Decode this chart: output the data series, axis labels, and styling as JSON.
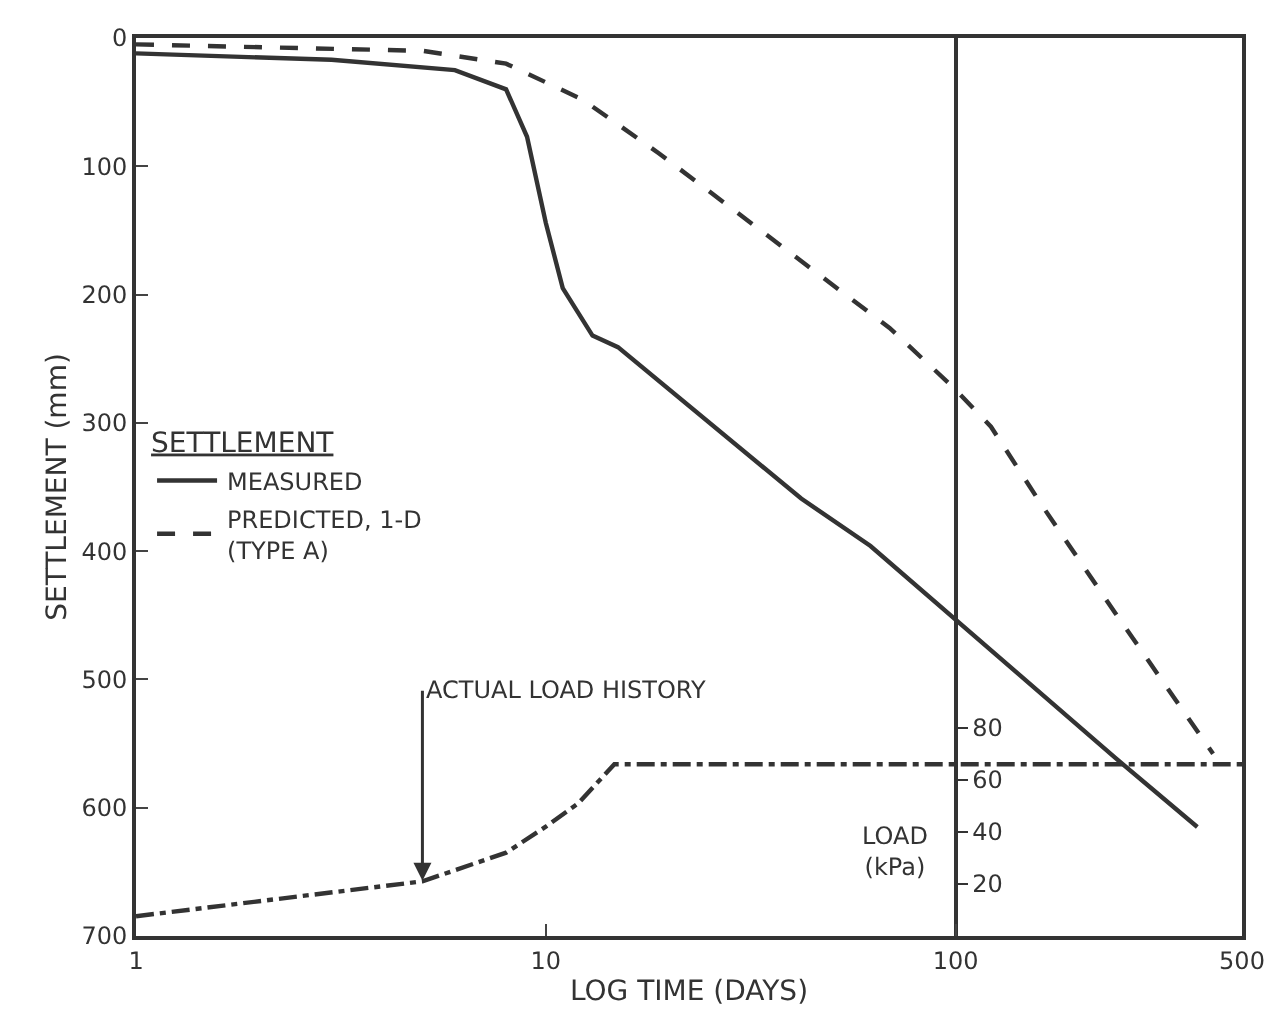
{
  "chart_data": {
    "type": "line",
    "xlabel": "LOG TIME (DAYS)",
    "ylabel": "SETTLEMENT (mm)",
    "y2label": "LOAD\n(kPa)",
    "legend_title": "SETTLEMENT",
    "legend": "left",
    "log": "x",
    "xlim": [
      1,
      500
    ],
    "xticks": [
      1,
      10,
      100,
      500
    ],
    "ylim": [
      700,
      0
    ],
    "yticks": [
      0,
      100,
      200,
      300,
      400,
      500,
      600,
      700
    ],
    "y2lim": [
      0,
      345
    ],
    "y2ticks": [
      20,
      40,
      60,
      80
    ],
    "marker": "none",
    "series": [
      {
        "name": "MEASURED",
        "color": "#333333",
        "line_style": "solid",
        "x": [
          1,
          3,
          6,
          8,
          9,
          10,
          11,
          13,
          15,
          42,
          62,
          245,
          389
        ],
        "values": [
          12,
          17,
          25,
          40,
          77,
          144,
          195,
          232,
          241,
          359,
          396,
          561,
          615
        ]
      },
      {
        "name": "PREDICTED, 1-D\n(TYPE A)",
        "color": "#333333",
        "line_style": "dashed",
        "x": [
          1,
          5,
          8,
          12.3,
          18.9,
          69,
          98.5,
          122,
          163,
          245,
          425
        ],
        "values": [
          5,
          10,
          20,
          48,
          90,
          226,
          272,
          303,
          365,
          448,
          558
        ]
      },
      {
        "color": "#333333",
        "line_style": "dashdot",
        "axis": "y2",
        "x": [
          1,
          5,
          8,
          10,
          12,
          14.7,
          500
        ],
        "values": [
          7.6,
          21,
          32,
          42,
          51,
          66,
          66
        ]
      }
    ],
    "annotations": [
      {
        "text": "ACTUAL LOAD HISTORY",
        "x": 5,
        "y": 657
      }
    ]
  }
}
